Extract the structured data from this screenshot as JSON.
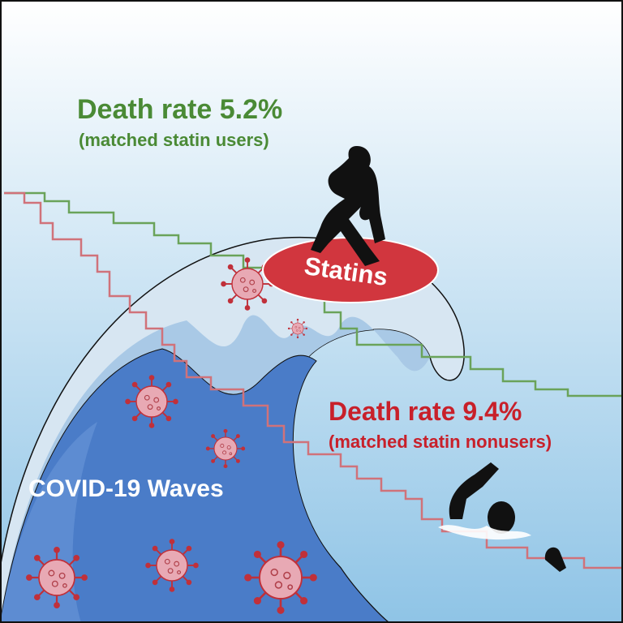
{
  "statin_users": {
    "title": "Death rate 5.2%",
    "subtitle": "(matched statin users)"
  },
  "board": {
    "label": "Statins"
  },
  "statin_nonusers": {
    "title": "Death rate 9.4%",
    "subtitle": "(matched statin nonusers)"
  },
  "wave": {
    "label": "COVID-19 Waves"
  }
}
